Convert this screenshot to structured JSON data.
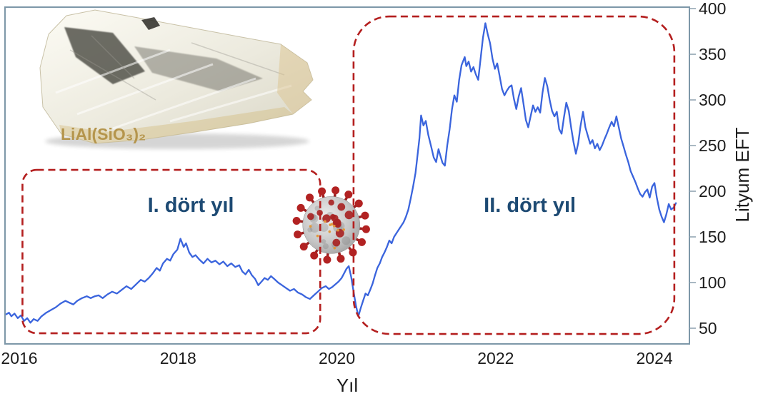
{
  "figure": {
    "crystal_formula": "LiAl(SiO₃)₂",
    "icons": {
      "coronavirus_icon": "SARS-CoV-2 virus particle",
      "crystal_image": "spodumene lithium mineral crystal"
    }
  },
  "chart_data": {
    "type": "line",
    "title": "",
    "xlabel": "Yıl",
    "ylabel": "Lityum EFT",
    "x_ticks": [
      "2016",
      "2018",
      "2020",
      "2022",
      "2024"
    ],
    "x_tick_values": [
      2016,
      2018,
      2020,
      2022,
      2024
    ],
    "y_ticks": [
      "50",
      "100",
      "150",
      "200",
      "250",
      "300",
      "350",
      "400"
    ],
    "y_tick_values": [
      50,
      100,
      150,
      200,
      250,
      300,
      350,
      400
    ],
    "xlim": [
      2015.82,
      2024.44
    ],
    "ylim": [
      32.8,
      401.6
    ],
    "grid": false,
    "legend": "none",
    "colors": {
      "line": "#3a64dd",
      "region": "#b41f1f",
      "annotation": "#1d4a73",
      "border": "#7d97a8",
      "tick": "#8ca0ae"
    },
    "regions": [
      {
        "label": "I. dört yıl",
        "x0": 2016.04,
        "x1": 2019.79,
        "y0": 44.5,
        "y1": 223.4,
        "corner_radius": 20,
        "label_x": 2018.16,
        "label_y": 185
      },
      {
        "label": "II. dört yıl",
        "x0": 2020.21,
        "x1": 2024.25,
        "y0": 43.7,
        "y1": 391.4,
        "corner_radius": 50,
        "label_x": 2022.43,
        "label_y": 185
      }
    ],
    "markers": [
      {
        "name": "coronavirus",
        "x": 2019.93,
        "y": 163
      }
    ],
    "series": [
      {
        "name": "Lityum EFT",
        "points": [
          [
            2015.83,
            65
          ],
          [
            2015.87,
            67
          ],
          [
            2015.9,
            63
          ],
          [
            2015.94,
            66
          ],
          [
            2015.98,
            61
          ],
          [
            2016.02,
            64
          ],
          [
            2016.06,
            58
          ],
          [
            2016.1,
            61
          ],
          [
            2016.14,
            56
          ],
          [
            2016.18,
            60
          ],
          [
            2016.23,
            58
          ],
          [
            2016.28,
            63
          ],
          [
            2016.34,
            67
          ],
          [
            2016.4,
            70
          ],
          [
            2016.46,
            73
          ],
          [
            2016.52,
            77
          ],
          [
            2016.58,
            80
          ],
          [
            2016.63,
            78
          ],
          [
            2016.68,
            76
          ],
          [
            2016.73,
            80
          ],
          [
            2016.79,
            83
          ],
          [
            2016.85,
            85
          ],
          [
            2016.9,
            83
          ],
          [
            2016.95,
            85
          ],
          [
            2017.0,
            86
          ],
          [
            2017.05,
            83
          ],
          [
            2017.11,
            87
          ],
          [
            2017.17,
            90
          ],
          [
            2017.23,
            88
          ],
          [
            2017.29,
            92
          ],
          [
            2017.35,
            96
          ],
          [
            2017.41,
            93
          ],
          [
            2017.47,
            98
          ],
          [
            2017.53,
            103
          ],
          [
            2017.58,
            101
          ],
          [
            2017.63,
            105
          ],
          [
            2017.68,
            110
          ],
          [
            2017.73,
            116
          ],
          [
            2017.77,
            113
          ],
          [
            2017.81,
            121
          ],
          [
            2017.86,
            126
          ],
          [
            2017.9,
            124
          ],
          [
            2017.94,
            131
          ],
          [
            2017.99,
            136
          ],
          [
            2018.03,
            148
          ],
          [
            2018.07,
            139
          ],
          [
            2018.1,
            143
          ],
          [
            2018.14,
            133
          ],
          [
            2018.18,
            128
          ],
          [
            2018.22,
            130
          ],
          [
            2018.27,
            125
          ],
          [
            2018.32,
            121
          ],
          [
            2018.37,
            126
          ],
          [
            2018.42,
            122
          ],
          [
            2018.47,
            124
          ],
          [
            2018.52,
            120
          ],
          [
            2018.57,
            123
          ],
          [
            2018.62,
            118
          ],
          [
            2018.67,
            121
          ],
          [
            2018.72,
            117
          ],
          [
            2018.77,
            119
          ],
          [
            2018.81,
            112
          ],
          [
            2018.85,
            109
          ],
          [
            2018.89,
            114
          ],
          [
            2018.93,
            108
          ],
          [
            2018.97,
            104
          ],
          [
            2019.01,
            97
          ],
          [
            2019.05,
            101
          ],
          [
            2019.09,
            105
          ],
          [
            2019.13,
            103
          ],
          [
            2019.17,
            107
          ],
          [
            2019.21,
            104
          ],
          [
            2019.26,
            100
          ],
          [
            2019.31,
            97
          ],
          [
            2019.36,
            94
          ],
          [
            2019.41,
            91
          ],
          [
            2019.46,
            93
          ],
          [
            2019.51,
            89
          ],
          [
            2019.56,
            87
          ],
          [
            2019.61,
            84
          ],
          [
            2019.66,
            82
          ],
          [
            2019.71,
            86
          ],
          [
            2019.76,
            90
          ],
          [
            2019.81,
            94
          ],
          [
            2019.86,
            96
          ],
          [
            2019.9,
            93
          ],
          [
            2019.94,
            95
          ],
          [
            2019.98,
            98
          ],
          [
            2020.02,
            101
          ],
          [
            2020.06,
            105
          ],
          [
            2020.09,
            110
          ],
          [
            2020.12,
            115
          ],
          [
            2020.15,
            118
          ],
          [
            2020.18,
            106
          ],
          [
            2020.21,
            90
          ],
          [
            2020.24,
            75
          ],
          [
            2020.27,
            63
          ],
          [
            2020.3,
            72
          ],
          [
            2020.33,
            80
          ],
          [
            2020.36,
            88
          ],
          [
            2020.39,
            86
          ],
          [
            2020.42,
            92
          ],
          [
            2020.45,
            99
          ],
          [
            2020.48,
            108
          ],
          [
            2020.51,
            116
          ],
          [
            2020.54,
            121
          ],
          [
            2020.57,
            128
          ],
          [
            2020.6,
            133
          ],
          [
            2020.63,
            139
          ],
          [
            2020.66,
            146
          ],
          [
            2020.69,
            143
          ],
          [
            2020.72,
            150
          ],
          [
            2020.75,
            154
          ],
          [
            2020.78,
            158
          ],
          [
            2020.81,
            162
          ],
          [
            2020.84,
            166
          ],
          [
            2020.87,
            172
          ],
          [
            2020.9,
            180
          ],
          [
            2020.93,
            192
          ],
          [
            2020.96,
            205
          ],
          [
            2020.99,
            220
          ],
          [
            2021.01,
            235
          ],
          [
            2021.04,
            258
          ],
          [
            2021.06,
            283
          ],
          [
            2021.09,
            272
          ],
          [
            2021.12,
            277
          ],
          [
            2021.15,
            262
          ],
          [
            2021.19,
            248
          ],
          [
            2021.22,
            237
          ],
          [
            2021.25,
            232
          ],
          [
            2021.28,
            246
          ],
          [
            2021.3,
            240
          ],
          [
            2021.33,
            231
          ],
          [
            2021.36,
            228
          ],
          [
            2021.39,
            250
          ],
          [
            2021.42,
            268
          ],
          [
            2021.45,
            290
          ],
          [
            2021.48,
            305
          ],
          [
            2021.51,
            298
          ],
          [
            2021.54,
            322
          ],
          [
            2021.57,
            338
          ],
          [
            2021.61,
            347
          ],
          [
            2021.63,
            337
          ],
          [
            2021.66,
            342
          ],
          [
            2021.69,
            331
          ],
          [
            2021.72,
            336
          ],
          [
            2021.75,
            328
          ],
          [
            2021.78,
            322
          ],
          [
            2021.81,
            345
          ],
          [
            2021.84,
            368
          ],
          [
            2021.87,
            384
          ],
          [
            2021.9,
            372
          ],
          [
            2021.93,
            362
          ],
          [
            2021.96,
            345
          ],
          [
            2021.99,
            334
          ],
          [
            2022.02,
            340
          ],
          [
            2022.05,
            326
          ],
          [
            2022.08,
            312
          ],
          [
            2022.11,
            305
          ],
          [
            2022.14,
            310
          ],
          [
            2022.17,
            314
          ],
          [
            2022.2,
            316
          ],
          [
            2022.23,
            301
          ],
          [
            2022.26,
            290
          ],
          [
            2022.29,
            304
          ],
          [
            2022.32,
            313
          ],
          [
            2022.35,
            296
          ],
          [
            2022.38,
            278
          ],
          [
            2022.41,
            270
          ],
          [
            2022.44,
            282
          ],
          [
            2022.47,
            294
          ],
          [
            2022.5,
            287
          ],
          [
            2022.53,
            292
          ],
          [
            2022.56,
            286
          ],
          [
            2022.59,
            308
          ],
          [
            2022.62,
            324
          ],
          [
            2022.65,
            315
          ],
          [
            2022.68,
            300
          ],
          [
            2022.71,
            288
          ],
          [
            2022.74,
            282
          ],
          [
            2022.77,
            287
          ],
          [
            2022.8,
            268
          ],
          [
            2022.83,
            263
          ],
          [
            2022.86,
            281
          ],
          [
            2022.89,
            297
          ],
          [
            2022.92,
            288
          ],
          [
            2022.95,
            270
          ],
          [
            2022.98,
            254
          ],
          [
            2023.01,
            241
          ],
          [
            2023.04,
            253
          ],
          [
            2023.07,
            272
          ],
          [
            2023.1,
            287
          ],
          [
            2023.13,
            270
          ],
          [
            2023.16,
            261
          ],
          [
            2023.19,
            252
          ],
          [
            2023.22,
            256
          ],
          [
            2023.25,
            247
          ],
          [
            2023.28,
            252
          ],
          [
            2023.31,
            245
          ],
          [
            2023.34,
            250
          ],
          [
            2023.37,
            257
          ],
          [
            2023.4,
            263
          ],
          [
            2023.43,
            270
          ],
          [
            2023.46,
            276
          ],
          [
            2023.49,
            271
          ],
          [
            2023.52,
            282
          ],
          [
            2023.55,
            270
          ],
          [
            2023.58,
            258
          ],
          [
            2023.61,
            249
          ],
          [
            2023.64,
            240
          ],
          [
            2023.67,
            232
          ],
          [
            2023.7,
            222
          ],
          [
            2023.73,
            216
          ],
          [
            2023.76,
            210
          ],
          [
            2023.79,
            203
          ],
          [
            2023.82,
            197
          ],
          [
            2023.85,
            194
          ],
          [
            2023.88,
            199
          ],
          [
            2023.91,
            202
          ],
          [
            2023.94,
            193
          ],
          [
            2023.97,
            205
          ],
          [
            2024.0,
            209
          ],
          [
            2024.03,
            193
          ],
          [
            2024.06,
            180
          ],
          [
            2024.09,
            172
          ],
          [
            2024.12,
            166
          ],
          [
            2024.15,
            175
          ],
          [
            2024.18,
            186
          ],
          [
            2024.21,
            180
          ],
          [
            2024.24,
            182
          ],
          [
            2024.27,
            187
          ]
        ]
      }
    ]
  }
}
